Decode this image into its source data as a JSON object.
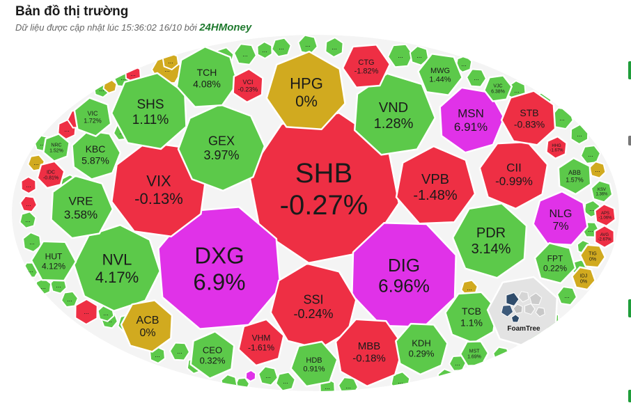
{
  "header": {
    "title": "Bản đồ thị trường",
    "subtitle_prefix": "Dữ liệu được cập nhật lúc 15:36:02 16/10 bởi",
    "brand": "24HMoney"
  },
  "colors": {
    "up": "#5cc94a",
    "down": "#ee2f44",
    "ceiling": "#e032e8",
    "flat": "#d1aa1f",
    "logo_bg": "#e3e3e3"
  },
  "foamtree_label": "FoamTree",
  "chart_data": {
    "type": "treemap",
    "title": "Bản đồ thị trường",
    "cells": [
      {
        "ticker": "SHB",
        "change": "-0.27%",
        "status": "down"
      },
      {
        "ticker": "DXG",
        "change": "6.9%",
        "status": "ceiling"
      },
      {
        "ticker": "DIG",
        "change": "6.96%",
        "status": "ceiling"
      },
      {
        "ticker": "SSI",
        "change": "-0.24%",
        "status": "down"
      },
      {
        "ticker": "VIX",
        "change": "-0.13%",
        "status": "down"
      },
      {
        "ticker": "GEX",
        "change": "3.97%",
        "status": "up"
      },
      {
        "ticker": "VPB",
        "change": "-1.48%",
        "status": "down"
      },
      {
        "ticker": "HPG",
        "change": "0%",
        "status": "flat"
      },
      {
        "ticker": "VND",
        "change": "1.28%",
        "status": "up"
      },
      {
        "ticker": "NVL",
        "change": "4.17%",
        "status": "up"
      },
      {
        "ticker": "PDR",
        "change": "3.14%",
        "status": "up"
      },
      {
        "ticker": "SHS",
        "change": "1.11%",
        "status": "up"
      },
      {
        "ticker": "MSN",
        "change": "6.91%",
        "status": "ceiling"
      },
      {
        "ticker": "CII",
        "change": "-0.99%",
        "status": "down"
      },
      {
        "ticker": "TCH",
        "change": "4.08%",
        "status": "up"
      },
      {
        "ticker": "VRE",
        "change": "3.58%",
        "status": "up"
      },
      {
        "ticker": "NLG",
        "change": "7%",
        "status": "ceiling"
      },
      {
        "ticker": "STB",
        "change": "-0.83%",
        "status": "down"
      },
      {
        "ticker": "MBB",
        "change": "-0.18%",
        "status": "down"
      },
      {
        "ticker": "KBC",
        "change": "5.87%",
        "status": "up"
      },
      {
        "ticker": "ACB",
        "change": "0%",
        "status": "flat"
      },
      {
        "ticker": "TCB",
        "change": "1.1%",
        "status": "up"
      },
      {
        "ticker": "KDH",
        "change": "0.29%",
        "status": "up"
      },
      {
        "ticker": "CEO",
        "change": "0.32%",
        "status": "up"
      },
      {
        "ticker": "HUT",
        "change": "4.12%",
        "status": "up"
      },
      {
        "ticker": "FPT",
        "change": "0.22%",
        "status": "up"
      },
      {
        "ticker": "VHM",
        "change": "-1.61%",
        "status": "down"
      },
      {
        "ticker": "HDB",
        "change": "0.91%",
        "status": "up"
      },
      {
        "ticker": "CTG",
        "change": "-1.82%",
        "status": "down"
      },
      {
        "ticker": "MWG",
        "change": "1.44%",
        "status": "up"
      },
      {
        "ticker": "VIC",
        "change": "1.72%",
        "status": "up"
      },
      {
        "ticker": "VCI",
        "change": "-0.23%",
        "status": "down"
      },
      {
        "ticker": "ABB",
        "change": "1.57%",
        "status": "up"
      },
      {
        "ticker": "NRC",
        "change": "1.52%",
        "status": "up"
      },
      {
        "ticker": "IDC",
        "change": "-0.81%",
        "status": "down"
      },
      {
        "ticker": "VJC",
        "change": "6.38%",
        "status": "up"
      },
      {
        "ticker": "MST",
        "change": "1.69%",
        "status": "up"
      },
      {
        "ticker": "TIG",
        "change": "0%",
        "status": "flat"
      },
      {
        "ticker": "IDJ",
        "change": "0%",
        "status": "flat"
      },
      {
        "ticker": "KSV",
        "change": "1.36%",
        "status": "up"
      },
      {
        "ticker": "APS",
        "change": "-1.06%",
        "status": "down"
      },
      {
        "ticker": "AVG",
        "change": "-2.67%",
        "status": "down"
      },
      {
        "ticker": "HHG",
        "change": "-1.67%",
        "status": "down"
      }
    ]
  }
}
